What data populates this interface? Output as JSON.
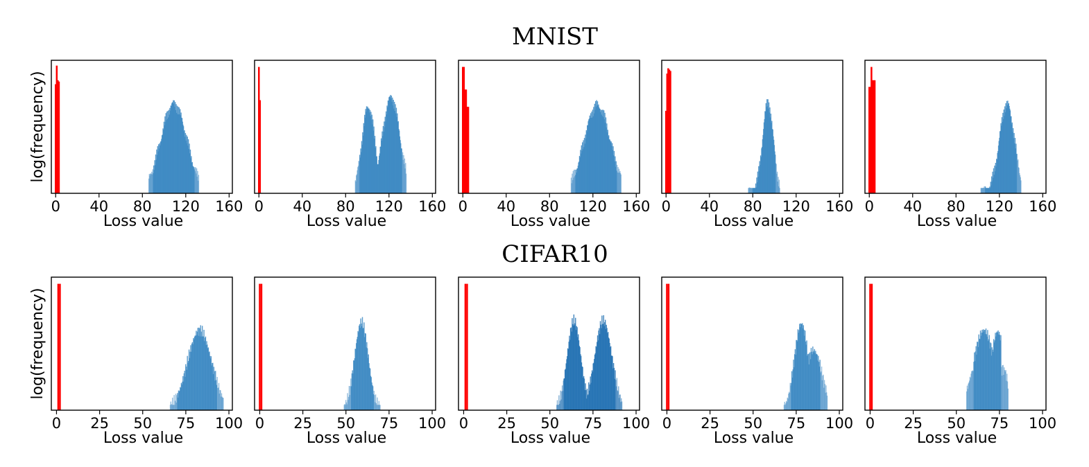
{
  "figure": {
    "rows": [
      {
        "title": "MNIST",
        "ylabel": "log(frequency)",
        "xlabel": "Loss value",
        "xticks": [
          "0",
          "40",
          "80",
          "120",
          "160"
        ],
        "xlim": [
          -4,
          163
        ]
      },
      {
        "title": "CIFAR10",
        "ylabel": "log(frequency)",
        "xlabel": "Loss value",
        "xticks": [
          "0",
          "25",
          "50",
          "75",
          "100"
        ],
        "xlim": [
          -3,
          102
        ]
      }
    ],
    "colors": {
      "member_loss_bars": "#ff0000",
      "nonmember_loss_bars": "#3a87c2",
      "nonmember_loss_bars_dark": "#1f6fb2",
      "axes_frame": "#000000"
    }
  },
  "chart_data": [
    {
      "panel": "MNIST-1",
      "type": "bar",
      "xlabel": "Loss value",
      "ylabel": "log(frequency)",
      "xlim": [
        -4,
        163
      ],
      "yscale": "log",
      "grid": false,
      "series": [
        {
          "role": "red",
          "x": [
            0,
            1,
            2,
            3
          ],
          "y": [
            0.82,
            0.96,
            0.85,
            0.84
          ]
        },
        {
          "role": "blue",
          "peaks": [
            {
              "center": 109,
              "width": 12,
              "height": 0.67
            }
          ],
          "support": [
            86,
            132
          ]
        }
      ]
    },
    {
      "panel": "MNIST-2",
      "type": "bar",
      "xlabel": "Loss value",
      "ylabel": "",
      "xlim": [
        -4,
        163
      ],
      "yscale": "log",
      "grid": false,
      "series": [
        {
          "role": "red",
          "x": [
            0,
            1
          ],
          "y": [
            0.95,
            0.7
          ]
        },
        {
          "role": "blue",
          "peaks": [
            {
              "center": 101,
              "width": 6,
              "height": 0.65
            },
            {
              "center": 122,
              "width": 8,
              "height": 0.72
            }
          ],
          "support": [
            89,
            136
          ]
        }
      ]
    },
    {
      "panel": "MNIST-3",
      "type": "bar",
      "xlabel": "Loss value",
      "ylabel": "",
      "xlim": [
        -4,
        163
      ],
      "yscale": "log",
      "grid": false,
      "series": [
        {
          "role": "red",
          "x": [
            0,
            1,
            2,
            3,
            4,
            5
          ],
          "y": [
            0.95,
            0.95,
            0.78,
            0.78,
            0.65,
            0.65
          ]
        },
        {
          "role": "blue",
          "peaks": [
            {
              "center": 124,
              "width": 12,
              "height": 0.66
            }
          ],
          "support": [
            100,
            146
          ]
        }
      ]
    },
    {
      "panel": "MNIST-4",
      "type": "bar",
      "xlabel": "Loss value",
      "ylabel": "",
      "xlim": [
        -4,
        163
      ],
      "yscale": "log",
      "grid": false,
      "series": [
        {
          "role": "red",
          "x": [
            0,
            1,
            2,
            3,
            4
          ],
          "y": [
            0.62,
            0.9,
            0.94,
            0.93,
            0.92
          ]
        },
        {
          "role": "blue",
          "peaks": [
            {
              "center": 94,
              "width": 5,
              "height": 0.68
            }
          ],
          "support": [
            76,
            105
          ]
        }
      ]
    },
    {
      "panel": "MNIST-5",
      "type": "bar",
      "xlabel": "Loss value",
      "ylabel": "",
      "xlim": [
        -4,
        163
      ],
      "yscale": "log",
      "grid": false,
      "series": [
        {
          "role": "red",
          "x": [
            0,
            1,
            2,
            3,
            4,
            5
          ],
          "y": [
            0.8,
            0.8,
            0.95,
            0.85,
            0.85,
            0.85
          ]
        },
        {
          "role": "blue",
          "peaks": [
            {
              "center": 127,
              "width": 7,
              "height": 0.67
            }
          ],
          "support": [
            103,
            140
          ]
        }
      ]
    },
    {
      "panel": "CIFAR10-1",
      "type": "bar",
      "xlabel": "Loss value",
      "ylabel": "log(frequency)",
      "xlim": [
        -3,
        102
      ],
      "yscale": "log",
      "grid": false,
      "series": [
        {
          "role": "red",
          "x": [
            1,
            2
          ],
          "y": [
            0.95,
            0.95
          ]
        },
        {
          "role": "blue",
          "peaks": [
            {
              "center": 83,
              "width": 7,
              "height": 0.6
            }
          ],
          "support": [
            66,
            97
          ]
        }
      ]
    },
    {
      "panel": "CIFAR10-2",
      "type": "bar",
      "xlabel": "Loss value",
      "ylabel": "",
      "xlim": [
        -3,
        102
      ],
      "yscale": "log",
      "grid": false,
      "series": [
        {
          "role": "red",
          "x": [
            0,
            1
          ],
          "y": [
            0.95,
            0.95
          ]
        },
        {
          "role": "blue",
          "peaks": [
            {
              "center": 59,
              "width": 4,
              "height": 0.66
            }
          ],
          "support": [
            49,
            70
          ]
        }
      ]
    },
    {
      "panel": "CIFAR10-3",
      "type": "bar",
      "xlabel": "Loss value",
      "ylabel": "",
      "xlim": [
        -3,
        102
      ],
      "yscale": "log",
      "grid": false,
      "series": [
        {
          "role": "red",
          "x": [
            1,
            2
          ],
          "y": [
            0.95,
            0.95
          ]
        },
        {
          "role": "blue",
          "peaks": [
            {
              "center": 64,
              "width": 4,
              "height": 0.67
            },
            {
              "center": 81,
              "width": 5,
              "height": 0.67
            }
          ],
          "support": [
            54,
            92
          ]
        }
      ]
    },
    {
      "panel": "CIFAR10-4",
      "type": "bar",
      "xlabel": "Loss value",
      "ylabel": "",
      "xlim": [
        -3,
        102
      ],
      "yscale": "log",
      "grid": false,
      "series": [
        {
          "role": "red",
          "x": [
            0,
            1
          ],
          "y": [
            0.95,
            0.95
          ]
        },
        {
          "role": "blue",
          "peaks": [
            {
              "center": 78,
              "width": 4,
              "height": 0.65
            },
            {
              "center": 85,
              "width": 5,
              "height": 0.45
            }
          ],
          "support": [
            68,
            93
          ]
        }
      ]
    },
    {
      "panel": "CIFAR10-5",
      "type": "bar",
      "xlabel": "Loss value",
      "ylabel": "",
      "xlim": [
        -3,
        102
      ],
      "yscale": "log",
      "grid": false,
      "series": [
        {
          "role": "red",
          "x": [
            0,
            1
          ],
          "y": [
            0.95,
            0.95
          ]
        },
        {
          "role": "blue",
          "peaks": [
            {
              "center": 66,
              "width": 6,
              "height": 0.6
            },
            {
              "center": 74,
              "width": 4,
              "height": 0.59
            }
          ],
          "support": [
            56,
            80
          ]
        }
      ]
    }
  ]
}
